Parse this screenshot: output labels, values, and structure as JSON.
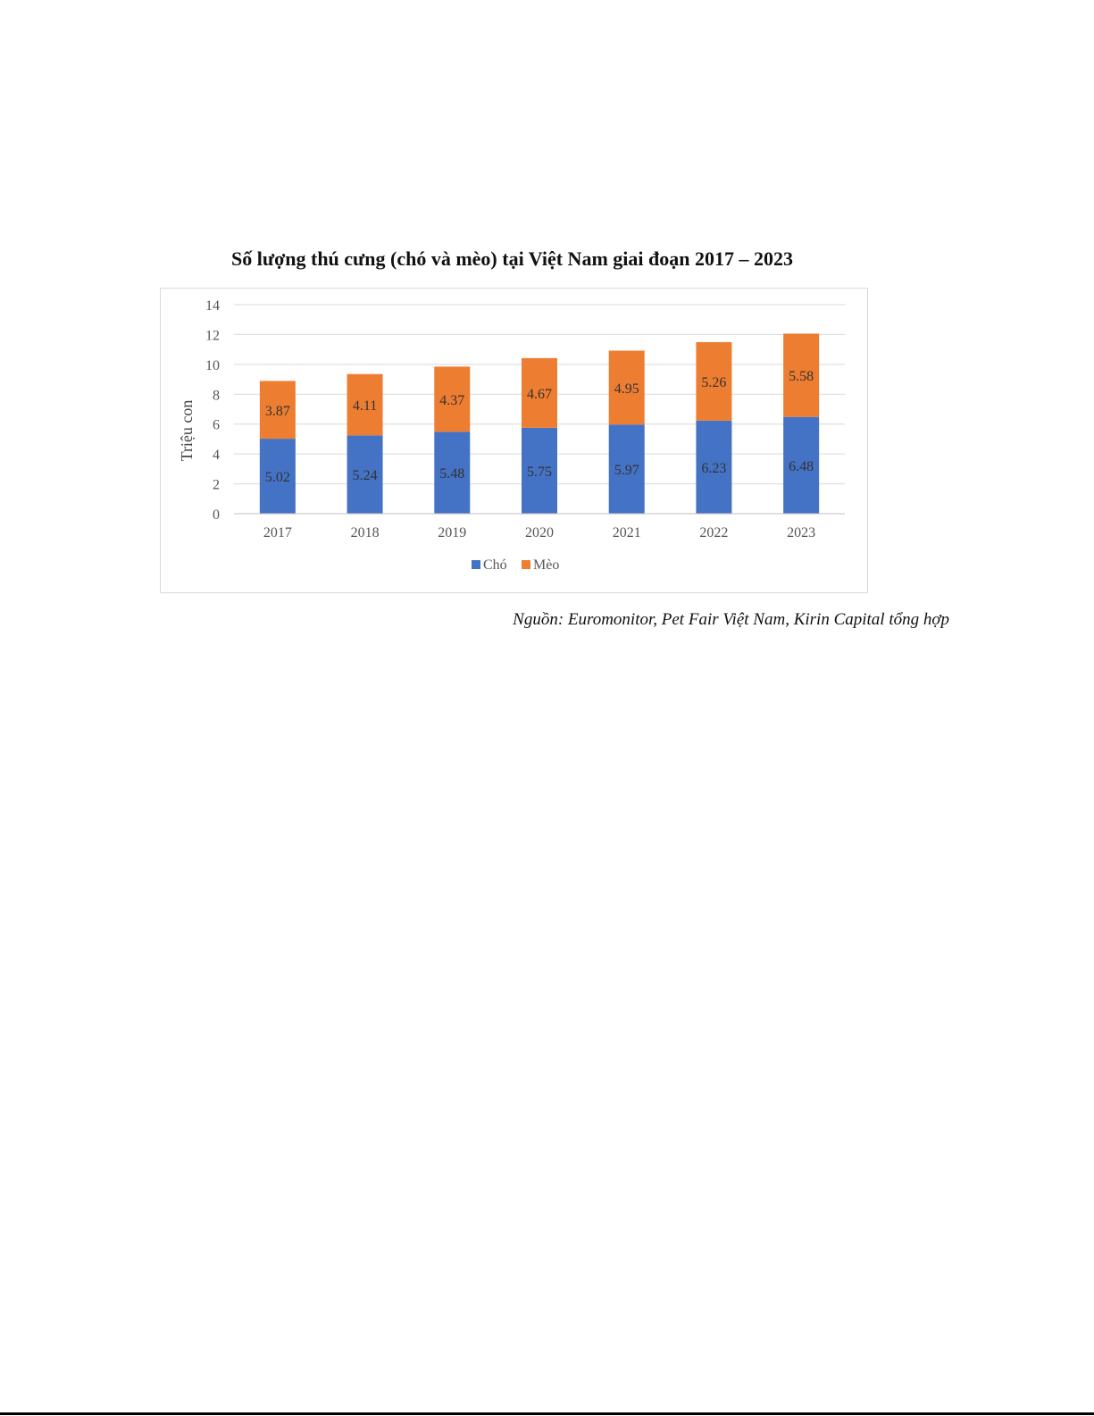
{
  "chart_data": {
    "type": "bar",
    "stacked": true,
    "title": "Số lượng thú cưng (chó và mèo) tại Việt Nam giai đoạn 2017 – 2023",
    "ylabel": "Triệu con",
    "xlabel": "",
    "ylim": [
      0,
      14
    ],
    "yticks": [
      0,
      2,
      4,
      6,
      8,
      10,
      12,
      14
    ],
    "grid": true,
    "legend": "bottom",
    "categories": [
      "2017",
      "2018",
      "2019",
      "2020",
      "2021",
      "2022",
      "2023"
    ],
    "series": [
      {
        "name": "Chó",
        "color": "#4472c4",
        "values": [
          5.02,
          5.24,
          5.48,
          5.75,
          5.97,
          6.23,
          6.48
        ]
      },
      {
        "name": "Mèo",
        "color": "#ed7d31",
        "values": [
          3.87,
          4.11,
          4.37,
          4.67,
          4.95,
          5.26,
          5.58
        ]
      }
    ]
  },
  "source_note": "Nguồn: Euromonitor, Pet Fair Việt Nam,  Kirin Capital tổng hợp"
}
